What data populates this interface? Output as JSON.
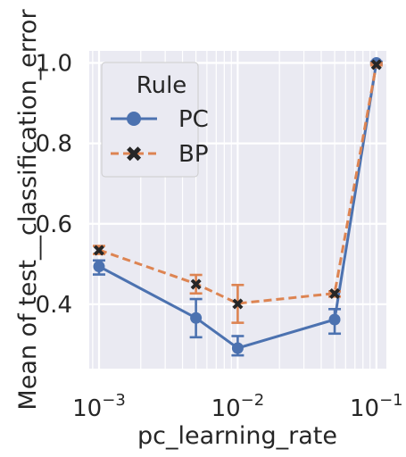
{
  "chart_data": {
    "type": "line",
    "xlabel": "pc_learning_rate",
    "ylabel": "Mean of test__classification_error",
    "xscale": "log",
    "xlim": [
      0.00085,
      0.118
    ],
    "ylim": [
      0.24,
      1.03
    ],
    "x": [
      0.001,
      0.005,
      0.01,
      0.05,
      0.1
    ],
    "x_ticks": [
      {
        "value": 0.001,
        "base": "10",
        "exp": "−3"
      },
      {
        "value": 0.01,
        "base": "10",
        "exp": "−2"
      },
      {
        "value": 0.1,
        "base": "10",
        "exp": "−1"
      }
    ],
    "y_ticks": [
      {
        "value": 0.4,
        "label": "0.4"
      },
      {
        "value": 0.6,
        "label": "0.6"
      },
      {
        "value": 0.8,
        "label": "0.8"
      },
      {
        "value": 1.0,
        "label": "1.0"
      }
    ],
    "grid": true,
    "legend": {
      "title": "Rule",
      "placement": "upper-left"
    },
    "series": [
      {
        "name": "PC",
        "color": "#4c72b0",
        "marker": "circle",
        "linestyle": "solid",
        "values": [
          0.494,
          0.366,
          0.291,
          0.362,
          1.0
        ],
        "ci_low": [
          0.474,
          0.318,
          0.273,
          0.327,
          0.997
        ],
        "ci_high": [
          0.509,
          0.413,
          0.321,
          0.388,
          1.003
        ]
      },
      {
        "name": "BP",
        "color": "#dd8452",
        "marker": "x",
        "linestyle": "dashed",
        "values": [
          0.535,
          0.451,
          0.402,
          0.427,
          0.997
        ],
        "ci_low": [
          0.525,
          0.427,
          0.354,
          0.419,
          0.994
        ],
        "ci_high": [
          0.545,
          0.473,
          0.448,
          0.432,
          1.0
        ]
      }
    ]
  }
}
